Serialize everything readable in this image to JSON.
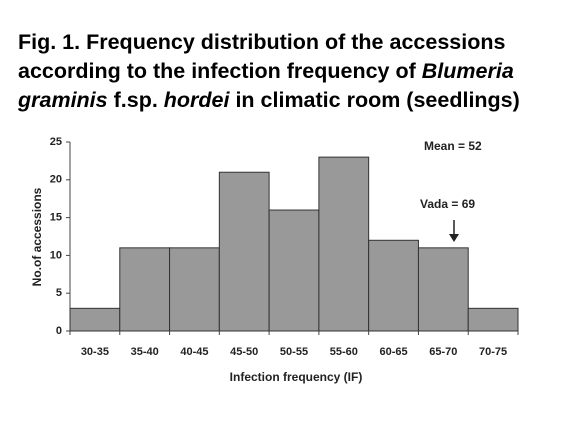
{
  "chart_data": {
    "type": "bar",
    "title_lines": [
      [
        {
          "text": "Fig. 1.",
          "italic": false
        },
        {
          "text": " Frequency distribution of the accessions",
          "italic": false
        }
      ],
      [
        {
          "text": "according to the infection frequency of ",
          "italic": false
        },
        {
          "text": "Blumeria",
          "italic": true
        }
      ],
      [
        {
          "text": "graminis",
          "italic": true
        },
        {
          "text": " f.sp. ",
          "italic": false
        },
        {
          "text": "hordei",
          "italic": true
        },
        {
          "text": " in climatic room (seedlings)",
          "italic": false
        }
      ]
    ],
    "x_label": "Infection frequency (IF)",
    "y_label": "No.of accessions",
    "categories": [
      "30-35",
      "35-40",
      "40-45",
      "45-50",
      "50-55",
      "55-60",
      "60-65",
      "65-70",
      "70-75"
    ],
    "values": [
      3,
      11,
      11,
      21,
      16,
      23,
      12,
      11,
      3
    ],
    "color": "#999999",
    "ylim": [
      0,
      25
    ],
    "yticks": [
      0,
      5,
      10,
      15,
      20,
      25
    ],
    "annotations": [
      "Mean = 52",
      "Vada = 69"
    ]
  }
}
